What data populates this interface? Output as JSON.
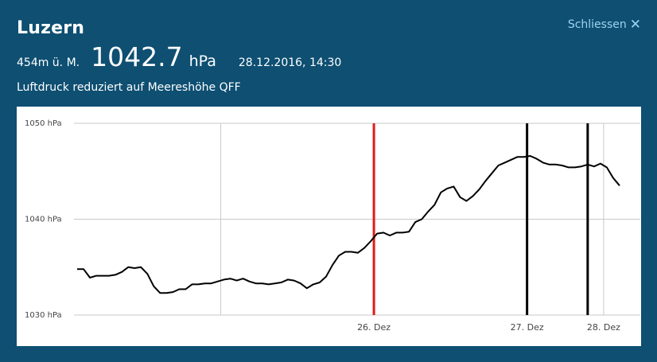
{
  "header": {
    "title": "Luzern",
    "close_label": "Schliessen",
    "altitude": "454m ü. M.",
    "value": "1042.7",
    "unit": "hPa",
    "datetime": "28.12.2016, 14:30",
    "subtitle": "Luftdruck reduziert auf Meereshöhe QFF"
  },
  "colors": {
    "background": "#0e4f72",
    "close_link": "#9fd3f0",
    "line": "#000000",
    "red_marker": "#e01b1b"
  },
  "icons": {
    "close": "close-icon"
  },
  "chart_data": {
    "type": "line",
    "title": "",
    "xlabel": "",
    "ylabel": "",
    "ylim": [
      1030,
      1050
    ],
    "y_ticks": [
      1030,
      1040,
      1050
    ],
    "y_tick_labels": [
      "1030 hPa",
      "1040 hPa",
      "1050 hPa"
    ],
    "x_unit": "hours since first sample",
    "x_range": [
      0,
      84
    ],
    "x_ticks": [
      {
        "x": 22.5,
        "label": ""
      },
      {
        "x": 46.5,
        "label": "26. Dez"
      },
      {
        "x": 70.5,
        "label": "27. Dez"
      },
      {
        "x": 82.5,
        "label": "28. Dez"
      }
    ],
    "vertical_markers": [
      {
        "x": 46.5,
        "color": "#e01b1b"
      },
      {
        "x": 70.5,
        "color": "#000000"
      },
      {
        "x": 80.0,
        "color": "#000000"
      }
    ],
    "grid": true,
    "series": [
      {
        "values": [
          [
            0,
            1034.8
          ],
          [
            1,
            1034.8
          ],
          [
            2,
            1033.9
          ],
          [
            3,
            1034.1
          ],
          [
            4,
            1034.1
          ],
          [
            5,
            1034.1
          ],
          [
            6,
            1034.2
          ],
          [
            7,
            1034.5
          ],
          [
            8,
            1035.0
          ],
          [
            9,
            1034.9
          ],
          [
            10,
            1035.0
          ],
          [
            11,
            1034.3
          ],
          [
            12,
            1033.0
          ],
          [
            13,
            1032.3
          ],
          [
            14,
            1032.3
          ],
          [
            15,
            1032.4
          ],
          [
            16,
            1032.7
          ],
          [
            17,
            1032.7
          ],
          [
            18,
            1033.2
          ],
          [
            19,
            1033.2
          ],
          [
            20,
            1033.3
          ],
          [
            21,
            1033.3
          ],
          [
            22,
            1033.5
          ],
          [
            23,
            1033.7
          ],
          [
            24,
            1033.8
          ],
          [
            25,
            1033.6
          ],
          [
            26,
            1033.8
          ],
          [
            27,
            1033.5
          ],
          [
            28,
            1033.3
          ],
          [
            29,
            1033.3
          ],
          [
            30,
            1033.2
          ],
          [
            31,
            1033.3
          ],
          [
            32,
            1033.4
          ],
          [
            33,
            1033.7
          ],
          [
            34,
            1033.6
          ],
          [
            35,
            1033.3
          ],
          [
            36,
            1032.8
          ],
          [
            37,
            1033.2
          ],
          [
            38,
            1033.4
          ],
          [
            39,
            1034.0
          ],
          [
            40,
            1035.2
          ],
          [
            41,
            1036.2
          ],
          [
            42,
            1036.6
          ],
          [
            43,
            1036.6
          ],
          [
            44,
            1036.5
          ],
          [
            45,
            1037.0
          ],
          [
            46,
            1037.7
          ],
          [
            47,
            1038.5
          ],
          [
            48,
            1038.6
          ],
          [
            49,
            1038.3
          ],
          [
            50,
            1038.6
          ],
          [
            51,
            1038.6
          ],
          [
            52,
            1038.7
          ],
          [
            53,
            1039.7
          ],
          [
            54,
            1040.0
          ],
          [
            55,
            1040.8
          ],
          [
            56,
            1041.5
          ],
          [
            57,
            1042.8
          ],
          [
            58,
            1043.2
          ],
          [
            59,
            1043.4
          ],
          [
            60,
            1042.3
          ],
          [
            61,
            1041.9
          ],
          [
            62,
            1042.4
          ],
          [
            63,
            1043.1
          ],
          [
            64,
            1044.0
          ],
          [
            65,
            1044.8
          ],
          [
            66,
            1045.6
          ],
          [
            67,
            1045.9
          ],
          [
            68,
            1046.2
          ],
          [
            69,
            1046.5
          ],
          [
            70,
            1046.5
          ],
          [
            71,
            1046.6
          ],
          [
            72,
            1046.3
          ],
          [
            73,
            1045.9
          ],
          [
            74,
            1045.7
          ],
          [
            75,
            1045.7
          ],
          [
            76,
            1045.6
          ],
          [
            77,
            1045.4
          ],
          [
            78,
            1045.4
          ],
          [
            79,
            1045.5
          ],
          [
            80,
            1045.7
          ],
          [
            81,
            1045.5
          ],
          [
            82,
            1045.8
          ],
          [
            83,
            1045.4
          ],
          [
            84,
            1044.3
          ],
          [
            85,
            1043.5
          ]
        ]
      }
    ]
  }
}
